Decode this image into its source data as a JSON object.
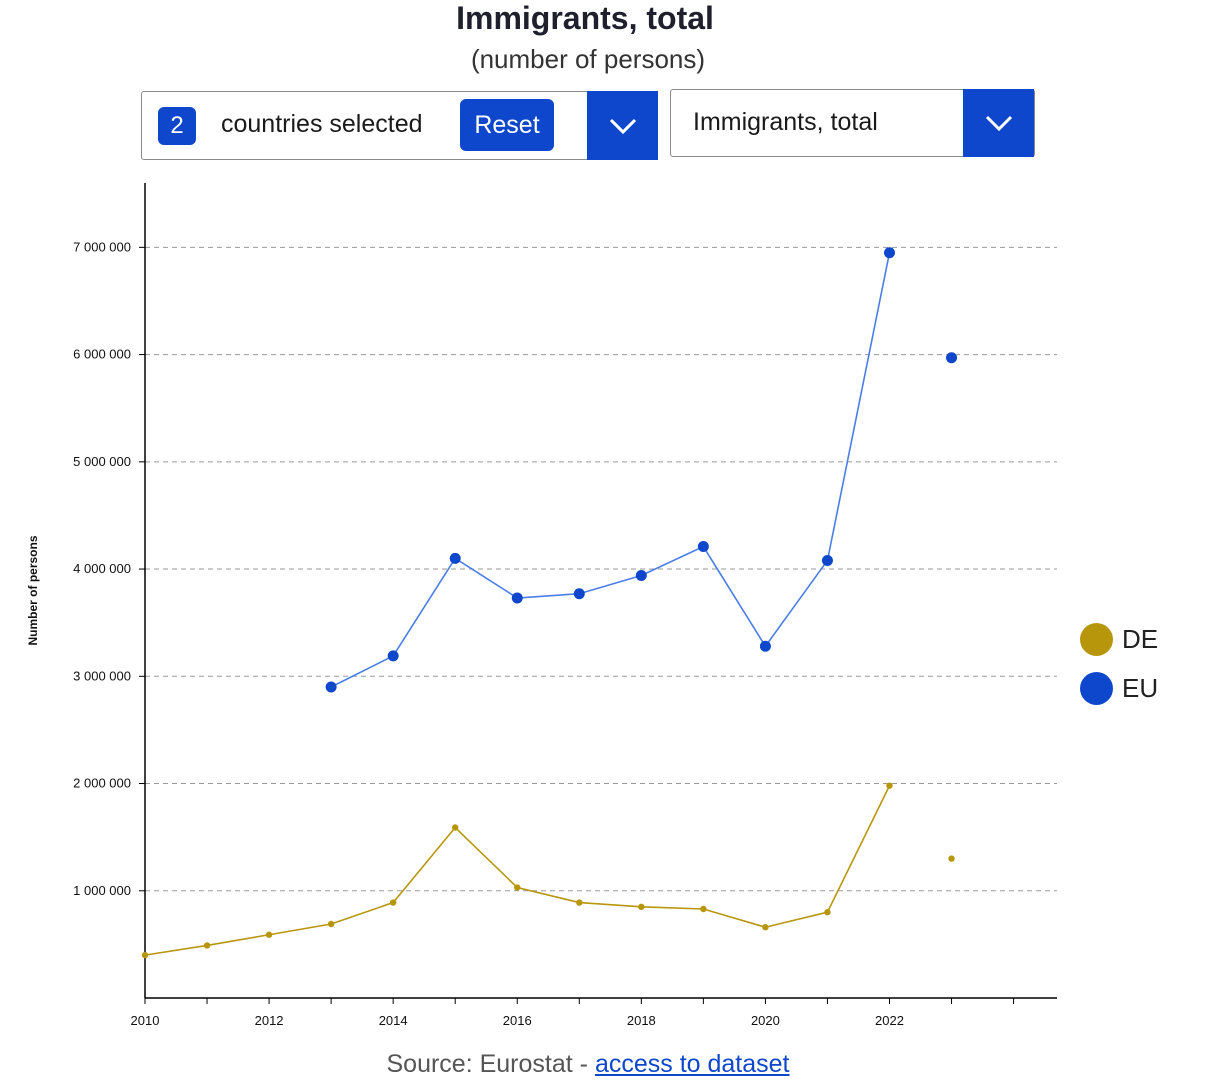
{
  "header": {
    "title": "Immigrants, total",
    "subtitle": "(number of persons)"
  },
  "controls": {
    "country_count": "2",
    "countries_label": "countries selected",
    "reset_label": "Reset",
    "indicator_value": "Immigrants, total"
  },
  "source": {
    "prefix": "Source: Eurostat -",
    "link_text": "access to dataset"
  },
  "colors": {
    "accent": "#0e47cb",
    "DE": "#b8960c",
    "EU": "#0e47cb",
    "EU_line": "#4a7ee6"
  },
  "chart_data": {
    "type": "line",
    "ylabel": "Number of persons",
    "xlim": [
      2010,
      2024.7
    ],
    "ylim": [
      0,
      7600000
    ],
    "x_ticks": [
      "2010",
      "2012",
      "2014",
      "2016",
      "2018",
      "2020",
      "2022"
    ],
    "y_ticks": [
      "1 000 000",
      "2 000 000",
      "3 000 000",
      "4 000 000",
      "5 000 000",
      "6 000 000",
      "7 000 000"
    ],
    "grid": "horizontal dashed",
    "legend_position": "right",
    "series": [
      {
        "name": "DE",
        "color": "#b8960c",
        "x": [
          2010,
          2011,
          2012,
          2013,
          2014,
          2015,
          2016,
          2017,
          2018,
          2019,
          2020,
          2021,
          2022,
          2023
        ],
        "values": [
          400000,
          490000,
          590000,
          690000,
          890000,
          1590000,
          1030000,
          890000,
          850000,
          830000,
          660000,
          800000,
          1980000,
          1300000
        ],
        "connected_until": 2022
      },
      {
        "name": "EU",
        "color": "#0e47cb",
        "x": [
          2013,
          2014,
          2015,
          2016,
          2017,
          2018,
          2019,
          2020,
          2021,
          2022,
          2023
        ],
        "values": [
          2900000,
          3190000,
          4100000,
          3730000,
          3770000,
          3940000,
          4210000,
          3280000,
          4080000,
          6950000,
          5970000
        ],
        "connected_until": 2022
      }
    ]
  }
}
